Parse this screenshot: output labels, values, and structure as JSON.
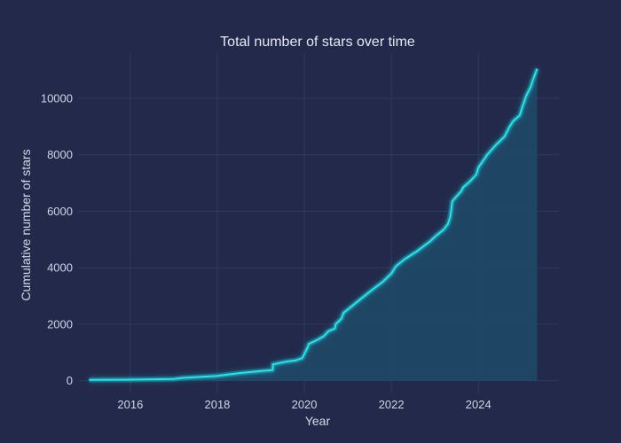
{
  "chart_data": {
    "type": "area",
    "title": "Total number of stars over time",
    "xlabel": "Year",
    "ylabel": "Cumulative number of stars",
    "xlim": [
      2014.8,
      2025.85
    ],
    "ylim": [
      -450,
      11600
    ],
    "x_ticks": [
      2016,
      2018,
      2020,
      2022,
      2024
    ],
    "y_ticks": [
      0,
      2000,
      4000,
      6000,
      8000,
      10000
    ],
    "grid": true,
    "colors": {
      "background": "#22294a",
      "grid": "#2f3a63",
      "line": "#22e6ee",
      "fill": "#1f4a68"
    },
    "series": [
      {
        "x": [
          2015.05,
          2016,
          2017.0,
          2017.2,
          2018.0,
          2018.5,
          2019.0,
          2019.27,
          2019.28,
          2019.6,
          2019.8,
          2019.95,
          2020.0,
          2020.08,
          2020.1,
          2020.3,
          2020.45,
          2020.55,
          2020.7,
          2020.72,
          2020.85,
          2020.9,
          2021.1,
          2021.3,
          2021.5,
          2021.8,
          2022.0,
          2022.1,
          2022.3,
          2022.6,
          2022.9,
          2023.0,
          2023.2,
          2023.3,
          2023.35,
          2023.38,
          2023.4,
          2023.45,
          2023.6,
          2023.65,
          2023.8,
          2023.95,
          2024.0,
          2024.2,
          2024.4,
          2024.6,
          2024.7,
          2024.8,
          2024.95,
          2025.0,
          2025.1,
          2025.2,
          2025.25,
          2025.35
        ],
        "y": [
          30,
          35,
          60,
          100,
          170,
          270,
          340,
          380,
          580,
          680,
          720,
          800,
          950,
          1200,
          1300,
          1450,
          1580,
          1750,
          1850,
          2000,
          2200,
          2400,
          2650,
          2900,
          3150,
          3500,
          3800,
          4050,
          4300,
          4600,
          4950,
          5100,
          5350,
          5550,
          5800,
          6100,
          6350,
          6450,
          6700,
          6850,
          7050,
          7300,
          7550,
          8000,
          8350,
          8650,
          8950,
          9200,
          9400,
          9650,
          10100,
          10400,
          10650,
          11050
        ]
      }
    ]
  }
}
